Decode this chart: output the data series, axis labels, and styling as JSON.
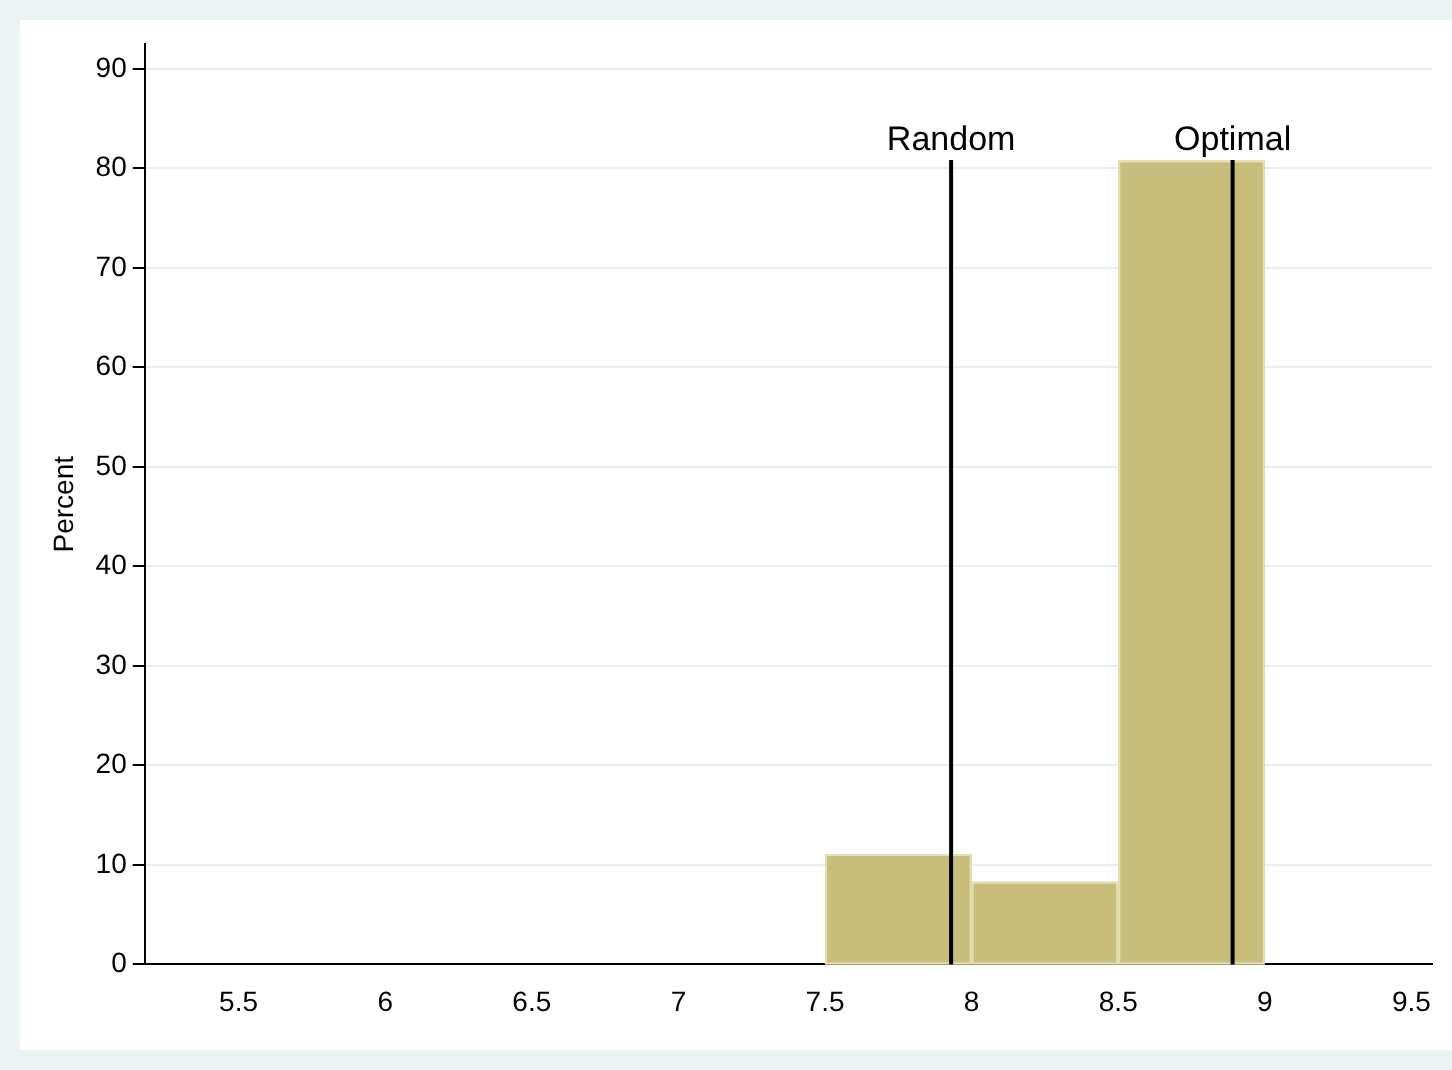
{
  "chart_data": {
    "type": "histogram",
    "ylabel": "Percent",
    "bins": [
      7.5,
      8,
      8.5,
      9
    ],
    "values": [
      11.1,
      8.3,
      80.8
    ],
    "color": "#c8bd7a",
    "ref_lines": [
      {
        "axis": "x",
        "value": 7.93,
        "label": "Random",
        "color": "#000000"
      },
      {
        "axis": "x",
        "value": 8.89,
        "label": "Optimal",
        "color": "#000000"
      }
    ],
    "xlim": [
      5.18,
      9.57
    ],
    "xticks": [
      5.5,
      6,
      6.5,
      7,
      7.5,
      8,
      8.5,
      9,
      9.5
    ],
    "ylim": [
      0,
      92.5
    ],
    "yticks": [
      0,
      10,
      20,
      30,
      40,
      50,
      60,
      70,
      80,
      90
    ],
    "grid": "y"
  }
}
